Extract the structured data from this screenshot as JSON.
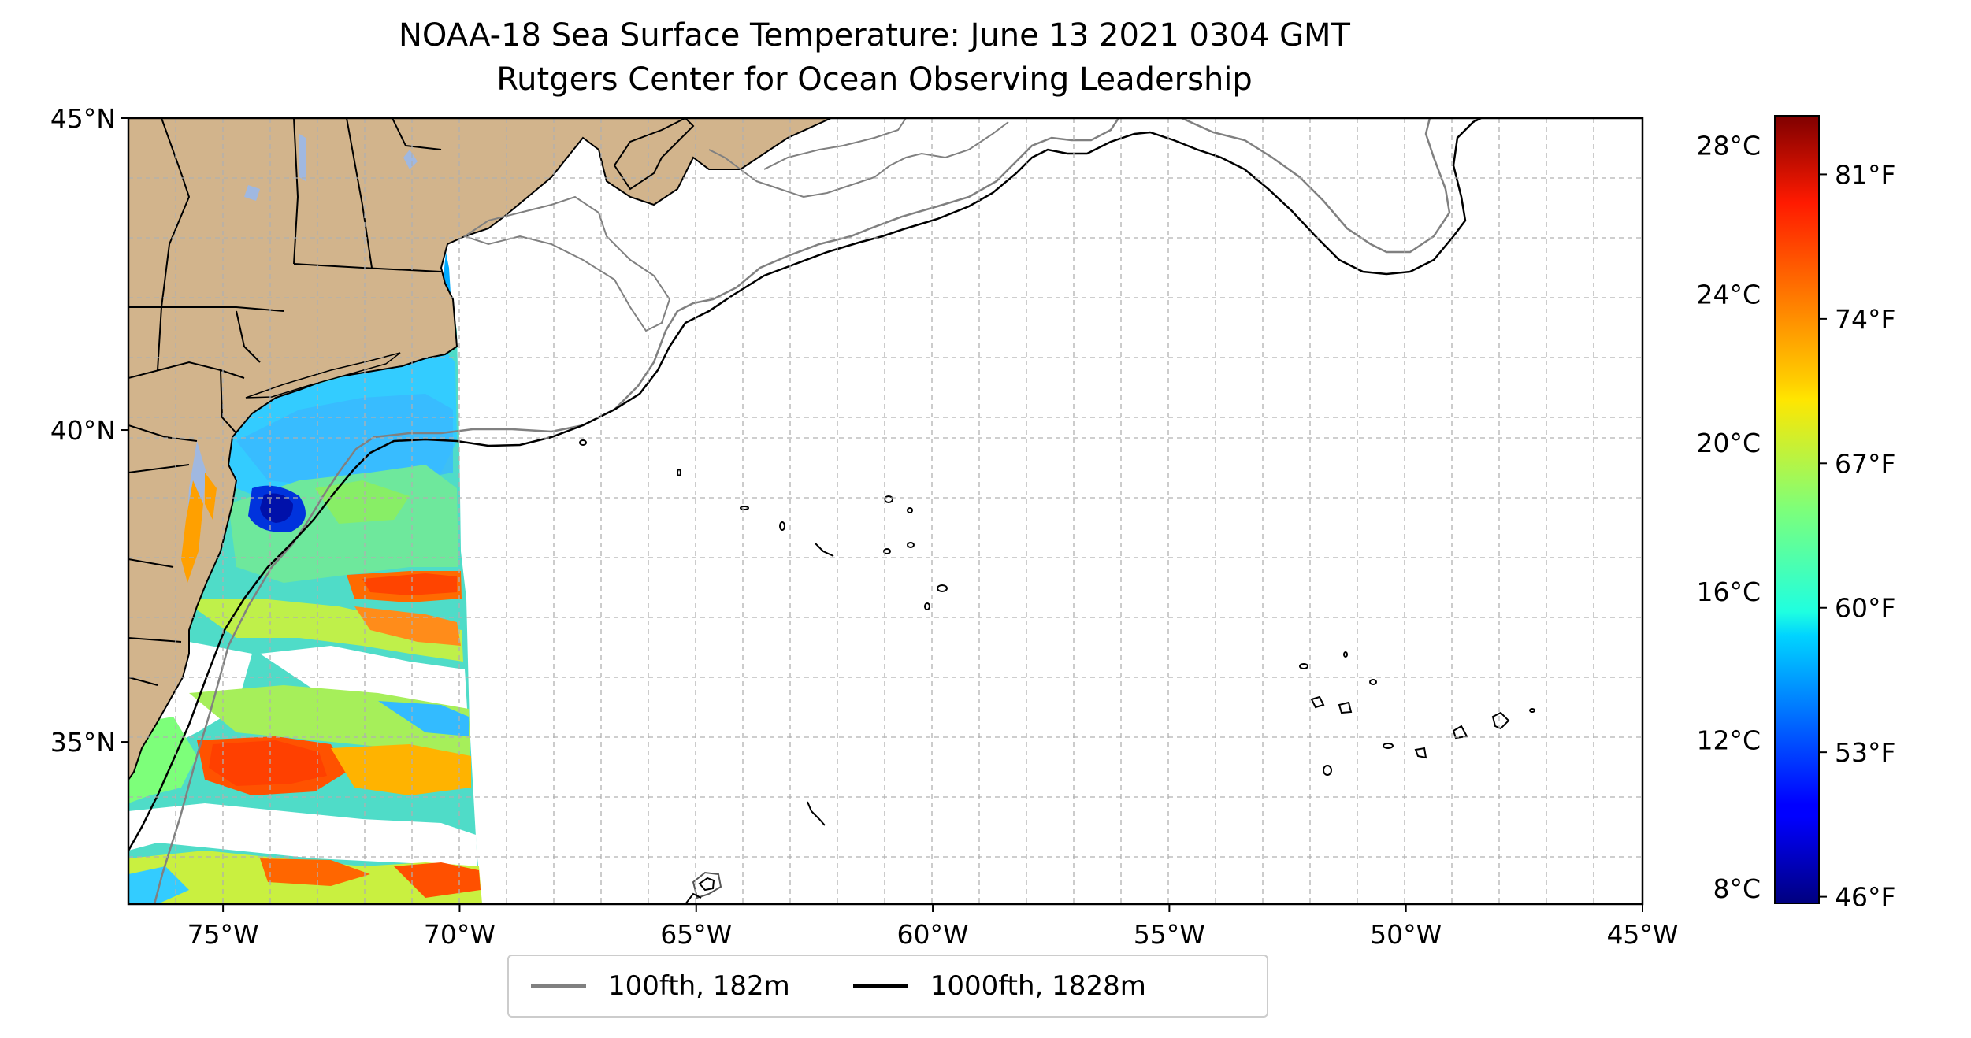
{
  "title": "NOAA-18 Sea Surface Temperature: June 13 2021 0304 GMT",
  "subtitle": "Rutgers Center for Ocean Observing Leadership",
  "map": {
    "lon_range": [
      -77,
      -45
    ],
    "lat_range": [
      32.4,
      45
    ],
    "lon_ticks": [
      {
        "v": -75,
        "label": "75°W"
      },
      {
        "v": -70,
        "label": "70°W"
      },
      {
        "v": -65,
        "label": "65°W"
      },
      {
        "v": -60,
        "label": "60°W"
      },
      {
        "v": -55,
        "label": "55°W"
      },
      {
        "v": -50,
        "label": "50°W"
      },
      {
        "v": -45,
        "label": "45°W"
      }
    ],
    "lat_ticks": [
      {
        "v": 45,
        "label": "45°N"
      },
      {
        "v": 40,
        "label": "40°N"
      },
      {
        "v": 35,
        "label": "35°N"
      }
    ],
    "land_color": "#d2b48c",
    "gridlines": "dashed"
  },
  "colorbar": {
    "range_c": [
      7.6,
      28.8
    ],
    "celsius_ticks": [
      {
        "v": 28,
        "label": "28°C"
      },
      {
        "v": 24,
        "label": "24°C"
      },
      {
        "v": 20,
        "label": "20°C"
      },
      {
        "v": 16,
        "label": "16°C"
      },
      {
        "v": 12,
        "label": "12°C"
      },
      {
        "v": 8,
        "label": "8°C"
      }
    ],
    "fahrenheit_ticks": [
      {
        "v": 81,
        "label": "81°F"
      },
      {
        "v": 74,
        "label": "74°F"
      },
      {
        "v": 67,
        "label": "67°F"
      },
      {
        "v": 60,
        "label": "60°F"
      },
      {
        "v": 53,
        "label": "53°F"
      },
      {
        "v": 46,
        "label": "46°F"
      }
    ],
    "colormap": "jet"
  },
  "legend": {
    "items": [
      {
        "label": "100fth, 182m",
        "color": "#808080"
      },
      {
        "label": "1000fth, 1828m",
        "color": "#000000"
      }
    ]
  }
}
